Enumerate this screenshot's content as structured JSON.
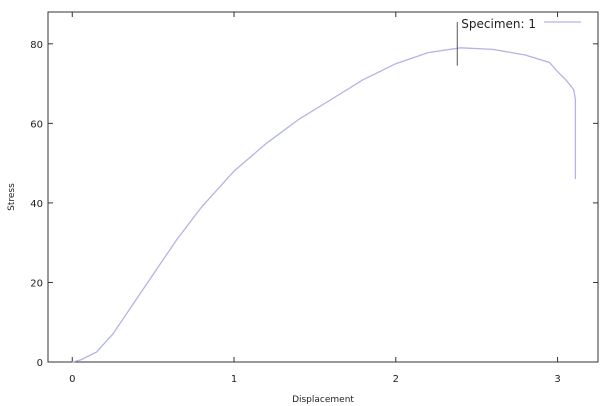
{
  "chart_data": {
    "type": "line",
    "title": "",
    "xlabel": "Displacement",
    "ylabel": "Stress",
    "xlim": [
      -0.15,
      3.25
    ],
    "ylim": [
      0,
      88
    ],
    "x_ticks": [
      0,
      1,
      2,
      3
    ],
    "x_tick_labels": [
      "0",
      "1",
      "2",
      "3"
    ],
    "y_ticks": [
      0,
      20,
      40,
      60,
      80
    ],
    "y_tick_labels": [
      "0",
      "20",
      "40",
      "60",
      "80"
    ],
    "grid": false,
    "legend_position": "top-right",
    "series": [
      {
        "name": "Specimen: 1",
        "color": "#b3b3e6",
        "x": [
          0,
          0.05,
          0.15,
          0.25,
          0.35,
          0.5,
          0.65,
          0.8,
          1.0,
          1.2,
          1.4,
          1.6,
          1.8,
          2.0,
          2.2,
          2.4,
          2.6,
          2.8,
          2.95,
          3.0,
          3.05,
          3.1,
          3.11,
          3.11
        ],
        "y": [
          0,
          0.5,
          2.5,
          7,
          13,
          22,
          31,
          39,
          48,
          55,
          61,
          66,
          71,
          75,
          77.8,
          79,
          78.6,
          77.2,
          75.3,
          73,
          71,
          68.5,
          66,
          46
        ]
      }
    ],
    "annotations": [
      {
        "type": "vertical-line",
        "x": 2.38,
        "y_from": 74.5,
        "y_to": 85.5,
        "color": "#555555"
      }
    ]
  }
}
